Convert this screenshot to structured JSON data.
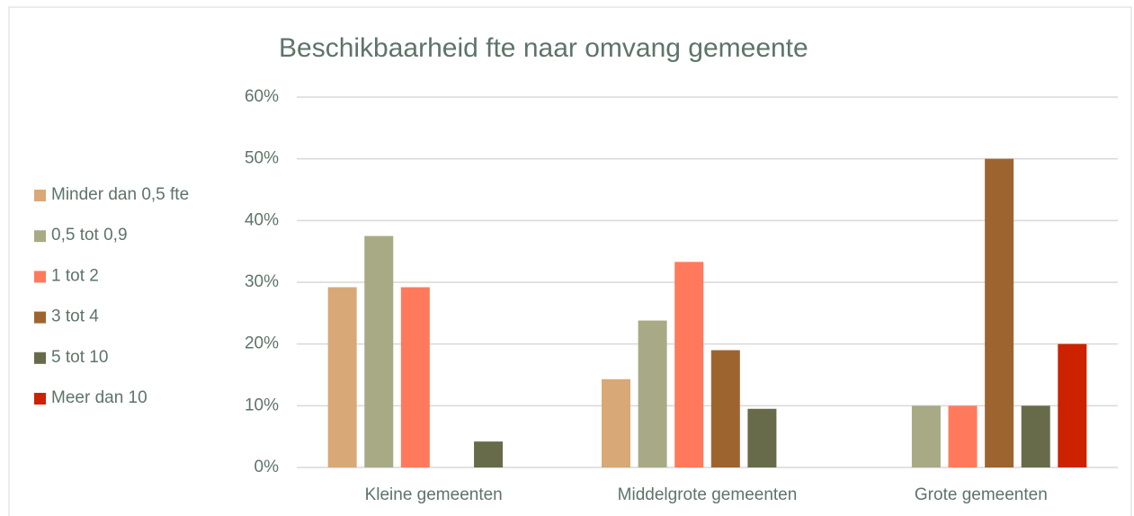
{
  "chart_data": {
    "type": "bar",
    "title": "Beschikbaarheid fte naar omvang gemeente",
    "categories": [
      "Kleine gemeenten",
      "Middelgrote gemeenten",
      "Grote gemeenten"
    ],
    "series": [
      {
        "name": "Minder dan 0,5 fte",
        "color": "#d9a877",
        "values": [
          29.2,
          14.3,
          0
        ]
      },
      {
        "name": "0,5 tot 0,9",
        "color": "#a8aa85",
        "values": [
          37.5,
          23.8,
          10
        ]
      },
      {
        "name": "1 tot 2",
        "color": "#ff7a5c",
        "values": [
          29.2,
          33.3,
          10
        ]
      },
      {
        "name": "3 tot 4",
        "color": "#9e6430",
        "values": [
          0,
          19.0,
          50
        ]
      },
      {
        "name": "5 tot 10",
        "color": "#676b4a",
        "values": [
          4.2,
          9.5,
          10
        ]
      },
      {
        "name": "Meer dan 10",
        "color": "#cc2200",
        "values": [
          0,
          0,
          20
        ]
      }
    ],
    "ylim": [
      0,
      60
    ],
    "yticks": [
      {
        "value": 0,
        "label": "0%"
      },
      {
        "value": 10,
        "label": "10%"
      },
      {
        "value": 20,
        "label": "20%"
      },
      {
        "value": 30,
        "label": "30%"
      },
      {
        "value": 40,
        "label": "40%"
      },
      {
        "value": 50,
        "label": "50%"
      },
      {
        "value": 60,
        "label": "60%"
      }
    ],
    "grid": true,
    "legend": "left"
  }
}
